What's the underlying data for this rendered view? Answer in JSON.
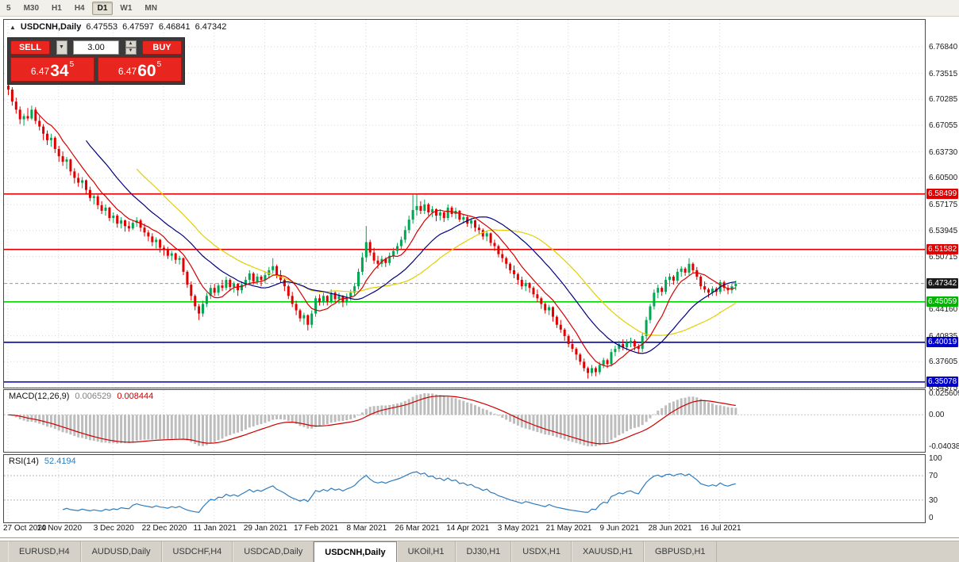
{
  "toolbar": {
    "timeframes": [
      {
        "label": "5",
        "active": false
      },
      {
        "label": "M30",
        "active": false
      },
      {
        "label": "H1",
        "active": false
      },
      {
        "label": "H4",
        "active": false
      },
      {
        "label": "D1",
        "active": true
      },
      {
        "label": "W1",
        "active": false
      },
      {
        "label": "MN",
        "active": false
      }
    ]
  },
  "chart_header": {
    "collapse": "▲",
    "title": "USDCNH,Daily",
    "open": "6.47553",
    "high": "6.47597",
    "low": "6.46841",
    "close": "6.47342"
  },
  "trade_panel": {
    "sell_label": "SELL",
    "buy_label": "BUY",
    "volume": "3.00",
    "dropdown_icon": "▼",
    "spin_up_icon": "▲",
    "spin_down_icon": "▼",
    "sell_price": {
      "prefix": "6.47",
      "big": "34",
      "sup": "5"
    },
    "buy_price": {
      "prefix": "6.47",
      "big": "60",
      "sup": "5"
    }
  },
  "price_axis": {
    "ticks": [
      "6.76840",
      "6.73515",
      "6.70285",
      "6.67055",
      "6.63730",
      "6.60500",
      "6.57175",
      "6.53945",
      "6.50715",
      "6.44160",
      "6.40835",
      "6.37605",
      "6.34375"
    ],
    "badges": [
      {
        "text": "6.58499",
        "bg": "#e00000"
      },
      {
        "text": "6.51582",
        "bg": "#e00000"
      },
      {
        "text": "6.47342",
        "bg": "#1a1a1a"
      },
      {
        "text": "6.45059",
        "bg": "#00b400"
      },
      {
        "text": "6.40019",
        "bg": "#0000c8"
      },
      {
        "text": "6.35078",
        "bg": "#0000c8"
      }
    ]
  },
  "macd_panel": {
    "label": "MACD(12,26,9)",
    "value_main": "0.006529",
    "value_signal": "0.008444",
    "axis_labels": [
      "0.025609",
      "0.00",
      "-0.04038"
    ],
    "params": {
      "fast": 12,
      "slow": 26,
      "signal": 9
    }
  },
  "rsi_panel": {
    "label": "RSI(14)",
    "value": "52.4194",
    "period": 14,
    "axis_labels": [
      "100",
      "70",
      "30",
      "0"
    ],
    "levels": [
      70,
      30
    ]
  },
  "tabs": [
    {
      "label": "EURUSD,H4",
      "active": false
    },
    {
      "label": "AUDUSD,Daily",
      "active": false
    },
    {
      "label": "USDCHF,H4",
      "active": false
    },
    {
      "label": "USDCAD,Daily",
      "active": false
    },
    {
      "label": "USDCNH,Daily",
      "active": true
    },
    {
      "label": "UKOil,H1",
      "active": false
    },
    {
      "label": "DJ30,H1",
      "active": false
    },
    {
      "label": "USDX,H1",
      "active": false
    },
    {
      "label": "XAUUSD,H1",
      "active": false
    },
    {
      "label": "GBPUSD,H1",
      "active": false
    }
  ],
  "colors": {
    "bull": "#00a651",
    "bear": "#e00000",
    "ma_slow": "#e3cf00",
    "ma_mid": "#000080",
    "ma_fast": "#d40000",
    "macd_hist": "#bdbdbd",
    "macd_signal": "#cc0000",
    "rsi_line": "#2e7cbe",
    "grid": "#d6d6d6",
    "bid_line": "#9a9a9a"
  },
  "chart_data": {
    "type": "candlestick",
    "symbol": "USDCNH",
    "timeframe": "Daily",
    "current_price": 6.47342,
    "view": {
      "price_max": 6.8019,
      "price_min": 6.34375,
      "bar_spacing": 4.9,
      "candle_width": 3
    },
    "levels": [
      {
        "price": 6.58499,
        "color": "#e00000"
      },
      {
        "price": 6.51582,
        "color": "#e00000"
      },
      {
        "price": 6.45059,
        "color": "#00d500"
      },
      {
        "price": 6.40019,
        "color": "#0000c8"
      },
      {
        "price": 6.35078,
        "color": "#0000c8"
      }
    ],
    "moving_averages": [
      {
        "period": 34,
        "color": "#e3cf00"
      },
      {
        "period": 21,
        "color": "#000080"
      },
      {
        "period": 8,
        "color": "#d40000"
      }
    ],
    "date_ticks": [
      {
        "idx": 0,
        "label": "27 Oct 2020"
      },
      {
        "idx": 13,
        "label": "14 Nov 2020"
      },
      {
        "idx": 27,
        "label": "3 Dec 2020"
      },
      {
        "idx": 40,
        "label": "22 Dec 2020"
      },
      {
        "idx": 53,
        "label": "11 Jan 2021"
      },
      {
        "idx": 66,
        "label": "29 Jan 2021"
      },
      {
        "idx": 79,
        "label": "17 Feb 2021"
      },
      {
        "idx": 92,
        "label": "8 Mar 2021"
      },
      {
        "idx": 105,
        "label": "26 Mar 2021"
      },
      {
        "idx": 118,
        "label": "14 Apr 2021"
      },
      {
        "idx": 131,
        "label": "3 May 2021"
      },
      {
        "idx": 144,
        "label": "21 May 2021"
      },
      {
        "idx": 157,
        "label": "9 Jun 2021"
      },
      {
        "idx": 170,
        "label": "28 Jun 2021"
      },
      {
        "idx": 183,
        "label": "16 Jul 2021"
      }
    ],
    "candles": [
      [
        6.72,
        6.724,
        6.708,
        6.715
      ],
      [
        6.715,
        6.718,
        6.695,
        6.7
      ],
      [
        6.7,
        6.705,
        6.685,
        6.69
      ],
      [
        6.69,
        6.694,
        6.672,
        6.678
      ],
      [
        6.678,
        6.685,
        6.67,
        6.682
      ],
      [
        6.682,
        6.692,
        6.676,
        6.679
      ],
      [
        6.679,
        6.695,
        6.677,
        6.69
      ],
      [
        6.69,
        6.693,
        6.672,
        6.676
      ],
      [
        6.676,
        6.682,
        6.664,
        6.669
      ],
      [
        6.669,
        6.672,
        6.652,
        6.66
      ],
      [
        6.66,
        6.664,
        6.646,
        6.652
      ],
      [
        6.652,
        6.66,
        6.644,
        6.655
      ],
      [
        6.655,
        6.657,
        6.636,
        6.641
      ],
      [
        6.641,
        6.645,
        6.625,
        6.632
      ],
      [
        6.632,
        6.638,
        6.62,
        6.625
      ],
      [
        6.625,
        6.631,
        6.616,
        6.628
      ],
      [
        6.628,
        6.629,
        6.608,
        6.613
      ],
      [
        6.613,
        6.617,
        6.598,
        6.605
      ],
      [
        6.605,
        6.611,
        6.594,
        6.599
      ],
      [
        6.599,
        6.606,
        6.592,
        6.602
      ],
      [
        6.602,
        6.603,
        6.584,
        6.59
      ],
      [
        6.59,
        6.594,
        6.576,
        6.58
      ],
      [
        6.58,
        6.585,
        6.572,
        6.582
      ],
      [
        6.582,
        6.584,
        6.566,
        6.571
      ],
      [
        6.571,
        6.576,
        6.56,
        6.564
      ],
      [
        6.564,
        6.572,
        6.558,
        6.568
      ],
      [
        6.568,
        6.569,
        6.551,
        6.555
      ],
      [
        6.555,
        6.562,
        6.549,
        6.558
      ],
      [
        6.558,
        6.56,
        6.543,
        6.548
      ],
      [
        6.548,
        6.556,
        6.542,
        6.552
      ],
      [
        6.552,
        6.553,
        6.538,
        6.545
      ],
      [
        6.545,
        6.551,
        6.538,
        6.542
      ],
      [
        6.542,
        6.552,
        6.54,
        6.549
      ],
      [
        6.549,
        6.556,
        6.544,
        6.552
      ],
      [
        6.552,
        6.554,
        6.538,
        6.543
      ],
      [
        6.543,
        6.548,
        6.532,
        6.537
      ],
      [
        6.537,
        6.54,
        6.526,
        6.532
      ],
      [
        6.532,
        6.536,
        6.52,
        6.525
      ],
      [
        6.525,
        6.531,
        6.517,
        6.528
      ],
      [
        6.528,
        6.529,
        6.512,
        6.518
      ],
      [
        6.518,
        6.521,
        6.508,
        6.515
      ],
      [
        6.515,
        6.519,
        6.504,
        6.508
      ],
      [
        6.508,
        6.514,
        6.502,
        6.511
      ],
      [
        6.511,
        6.512,
        6.498,
        6.503
      ],
      [
        6.503,
        6.508,
        6.497,
        6.505
      ],
      [
        6.505,
        6.506,
        6.484,
        6.488
      ],
      [
        6.488,
        6.49,
        6.468,
        6.472
      ],
      [
        6.472,
        6.476,
        6.452,
        6.458
      ],
      [
        6.458,
        6.46,
        6.44,
        6.445
      ],
      [
        6.445,
        6.448,
        6.428,
        6.436
      ],
      [
        6.436,
        6.452,
        6.432,
        6.448
      ],
      [
        6.448,
        6.462,
        6.444,
        6.458
      ],
      [
        6.458,
        6.472,
        6.454,
        6.468
      ],
      [
        6.468,
        6.473,
        6.458,
        6.462
      ],
      [
        6.462,
        6.474,
        6.458,
        6.471
      ],
      [
        6.471,
        6.478,
        6.464,
        6.468
      ],
      [
        6.468,
        6.482,
        6.465,
        6.478
      ],
      [
        6.478,
        6.48,
        6.464,
        6.469
      ],
      [
        6.469,
        6.476,
        6.462,
        6.473
      ],
      [
        6.473,
        6.474,
        6.458,
        6.465
      ],
      [
        6.465,
        6.476,
        6.461,
        6.472
      ],
      [
        6.472,
        6.482,
        6.468,
        6.478
      ],
      [
        6.478,
        6.49,
        6.474,
        6.486
      ],
      [
        6.486,
        6.488,
        6.472,
        6.476
      ],
      [
        6.476,
        6.486,
        6.472,
        6.482
      ],
      [
        6.482,
        6.484,
        6.47,
        6.478
      ],
      [
        6.478,
        6.488,
        6.474,
        6.484
      ],
      [
        6.484,
        6.494,
        6.48,
        6.49
      ],
      [
        6.49,
        6.505,
        6.486,
        6.495
      ],
      [
        6.495,
        6.497,
        6.48,
        6.484
      ],
      [
        6.484,
        6.49,
        6.474,
        6.478
      ],
      [
        6.478,
        6.48,
        6.464,
        6.47
      ],
      [
        6.47,
        6.472,
        6.454,
        6.458
      ],
      [
        6.458,
        6.463,
        6.444,
        6.448
      ],
      [
        6.448,
        6.452,
        6.434,
        6.44
      ],
      [
        6.44,
        6.442,
        6.426,
        6.43
      ],
      [
        6.43,
        6.437,
        6.422,
        6.434
      ],
      [
        6.434,
        6.435,
        6.415,
        6.422
      ],
      [
        6.422,
        6.44,
        6.418,
        6.436
      ],
      [
        6.436,
        6.458,
        6.432,
        6.455
      ],
      [
        6.455,
        6.46,
        6.446,
        6.45
      ],
      [
        6.45,
        6.462,
        6.446,
        6.458
      ],
      [
        6.458,
        6.459,
        6.446,
        6.451
      ],
      [
        6.451,
        6.466,
        6.448,
        6.462
      ],
      [
        6.462,
        6.464,
        6.45,
        6.454
      ],
      [
        6.454,
        6.462,
        6.448,
        6.458
      ],
      [
        6.458,
        6.459,
        6.444,
        6.45
      ],
      [
        6.45,
        6.461,
        6.446,
        6.457
      ],
      [
        6.457,
        6.466,
        6.452,
        6.462
      ],
      [
        6.462,
        6.474,
        6.458,
        6.47
      ],
      [
        6.47,
        6.492,
        6.466,
        6.488
      ],
      [
        6.488,
        6.512,
        6.484,
        6.506
      ],
      [
        6.506,
        6.545,
        6.5,
        6.525
      ],
      [
        6.525,
        6.528,
        6.508,
        6.512
      ],
      [
        6.512,
        6.518,
        6.498,
        6.502
      ],
      [
        6.502,
        6.508,
        6.492,
        6.498
      ],
      [
        6.498,
        6.508,
        6.494,
        6.504
      ],
      [
        6.504,
        6.506,
        6.494,
        6.499
      ],
      [
        6.499,
        6.512,
        6.496,
        6.508
      ],
      [
        6.508,
        6.518,
        6.504,
        6.514
      ],
      [
        6.514,
        6.524,
        6.51,
        6.52
      ],
      [
        6.52,
        6.532,
        6.516,
        6.528
      ],
      [
        6.528,
        6.545,
        6.524,
        6.54
      ],
      [
        6.54,
        6.558,
        6.536,
        6.553
      ],
      [
        6.553,
        6.585,
        6.548,
        6.565
      ],
      [
        6.565,
        6.584,
        6.558,
        6.57
      ],
      [
        6.57,
        6.576,
        6.56,
        6.564
      ],
      [
        6.564,
        6.578,
        6.56,
        6.572
      ],
      [
        6.572,
        6.574,
        6.558,
        6.562
      ],
      [
        6.562,
        6.57,
        6.556,
        6.566
      ],
      [
        6.566,
        6.567,
        6.551,
        6.558
      ],
      [
        6.558,
        6.566,
        6.552,
        6.562
      ],
      [
        6.562,
        6.563,
        6.55,
        6.555
      ],
      [
        6.555,
        6.572,
        6.552,
        6.568
      ],
      [
        6.568,
        6.57,
        6.556,
        6.56
      ],
      [
        6.56,
        6.568,
        6.554,
        6.564
      ],
      [
        6.564,
        6.565,
        6.55,
        6.553
      ],
      [
        6.553,
        6.56,
        6.548,
        6.556
      ],
      [
        6.556,
        6.558,
        6.544,
        6.548
      ],
      [
        6.548,
        6.555,
        6.542,
        6.552
      ],
      [
        6.552,
        6.553,
        6.538,
        6.543
      ],
      [
        6.543,
        6.547,
        6.534,
        6.54
      ],
      [
        6.54,
        6.542,
        6.528,
        6.532
      ],
      [
        6.532,
        6.539,
        6.526,
        6.536
      ],
      [
        6.536,
        6.537,
        6.52,
        6.524
      ],
      [
        6.524,
        6.528,
        6.514,
        6.52
      ],
      [
        6.52,
        6.522,
        6.506,
        6.51
      ],
      [
        6.51,
        6.516,
        6.5,
        6.505
      ],
      [
        6.505,
        6.507,
        6.492,
        6.498
      ],
      [
        6.498,
        6.5,
        6.486,
        6.49
      ],
      [
        6.49,
        6.496,
        6.48,
        6.485
      ],
      [
        6.485,
        6.487,
        6.472,
        6.478
      ],
      [
        6.478,
        6.482,
        6.466,
        6.47
      ],
      [
        6.47,
        6.478,
        6.464,
        6.474
      ],
      [
        6.474,
        6.475,
        6.462,
        6.468
      ],
      [
        6.468,
        6.47,
        6.456,
        6.46
      ],
      [
        6.46,
        6.466,
        6.45,
        6.455
      ],
      [
        6.455,
        6.457,
        6.442,
        6.448
      ],
      [
        6.448,
        6.45,
        6.436,
        6.44
      ],
      [
        6.44,
        6.447,
        6.434,
        6.444
      ],
      [
        6.444,
        6.445,
        6.426,
        6.432
      ],
      [
        6.432,
        6.434,
        6.418,
        6.422
      ],
      [
        6.422,
        6.428,
        6.412,
        6.416
      ],
      [
        6.416,
        6.418,
        6.402,
        6.408
      ],
      [
        6.408,
        6.41,
        6.394,
        6.398
      ],
      [
        6.398,
        6.404,
        6.388,
        6.392
      ],
      [
        6.392,
        6.394,
        6.378,
        6.385
      ],
      [
        6.385,
        6.387,
        6.372,
        6.376
      ],
      [
        6.376,
        6.38,
        6.364,
        6.368
      ],
      [
        6.368,
        6.37,
        6.355,
        6.362
      ],
      [
        6.362,
        6.372,
        6.358,
        6.368
      ],
      [
        6.368,
        6.37,
        6.358,
        6.363
      ],
      [
        6.363,
        6.376,
        6.36,
        6.372
      ],
      [
        6.372,
        6.381,
        6.368,
        6.378
      ],
      [
        6.378,
        6.38,
        6.368,
        6.373
      ],
      [
        6.373,
        6.392,
        6.37,
        6.388
      ],
      [
        6.388,
        6.396,
        6.383,
        6.392
      ],
      [
        6.392,
        6.402,
        6.388,
        6.398
      ],
      [
        6.398,
        6.404,
        6.39,
        6.394
      ],
      [
        6.394,
        6.404,
        6.39,
        6.4
      ],
      [
        6.4,
        6.406,
        6.394,
        6.402
      ],
      [
        6.402,
        6.404,
        6.39,
        6.395
      ],
      [
        6.395,
        6.398,
        6.386,
        6.392
      ],
      [
        6.392,
        6.412,
        6.388,
        6.408
      ],
      [
        6.408,
        6.432,
        6.404,
        6.428
      ],
      [
        6.428,
        6.448,
        6.424,
        6.445
      ],
      [
        6.445,
        6.466,
        6.441,
        6.462
      ],
      [
        6.462,
        6.472,
        6.455,
        6.468
      ],
      [
        6.468,
        6.47,
        6.458,
        6.463
      ],
      [
        6.463,
        6.482,
        6.46,
        6.478
      ],
      [
        6.478,
        6.486,
        6.47,
        6.482
      ],
      [
        6.482,
        6.484,
        6.472,
        6.477
      ],
      [
        6.477,
        6.492,
        6.474,
        6.488
      ],
      [
        6.488,
        6.495,
        6.482,
        6.492
      ],
      [
        6.492,
        6.494,
        6.483,
        6.487
      ],
      [
        6.487,
        6.505,
        6.484,
        6.498
      ],
      [
        6.498,
        6.5,
        6.486,
        6.49
      ],
      [
        6.49,
        6.494,
        6.478,
        6.482
      ],
      [
        6.482,
        6.484,
        6.466,
        6.47
      ],
      [
        6.47,
        6.476,
        6.462,
        6.466
      ],
      [
        6.466,
        6.468,
        6.456,
        6.462
      ],
      [
        6.462,
        6.47,
        6.458,
        6.467
      ],
      [
        6.467,
        6.469,
        6.458,
        6.463
      ],
      [
        6.463,
        6.478,
        6.46,
        6.475
      ],
      [
        6.475,
        6.477,
        6.464,
        6.468
      ],
      [
        6.468,
        6.472,
        6.46,
        6.465
      ],
      [
        6.465,
        6.474,
        6.461,
        6.47
      ],
      [
        6.47,
        6.477,
        6.465,
        6.4734
      ]
    ]
  }
}
